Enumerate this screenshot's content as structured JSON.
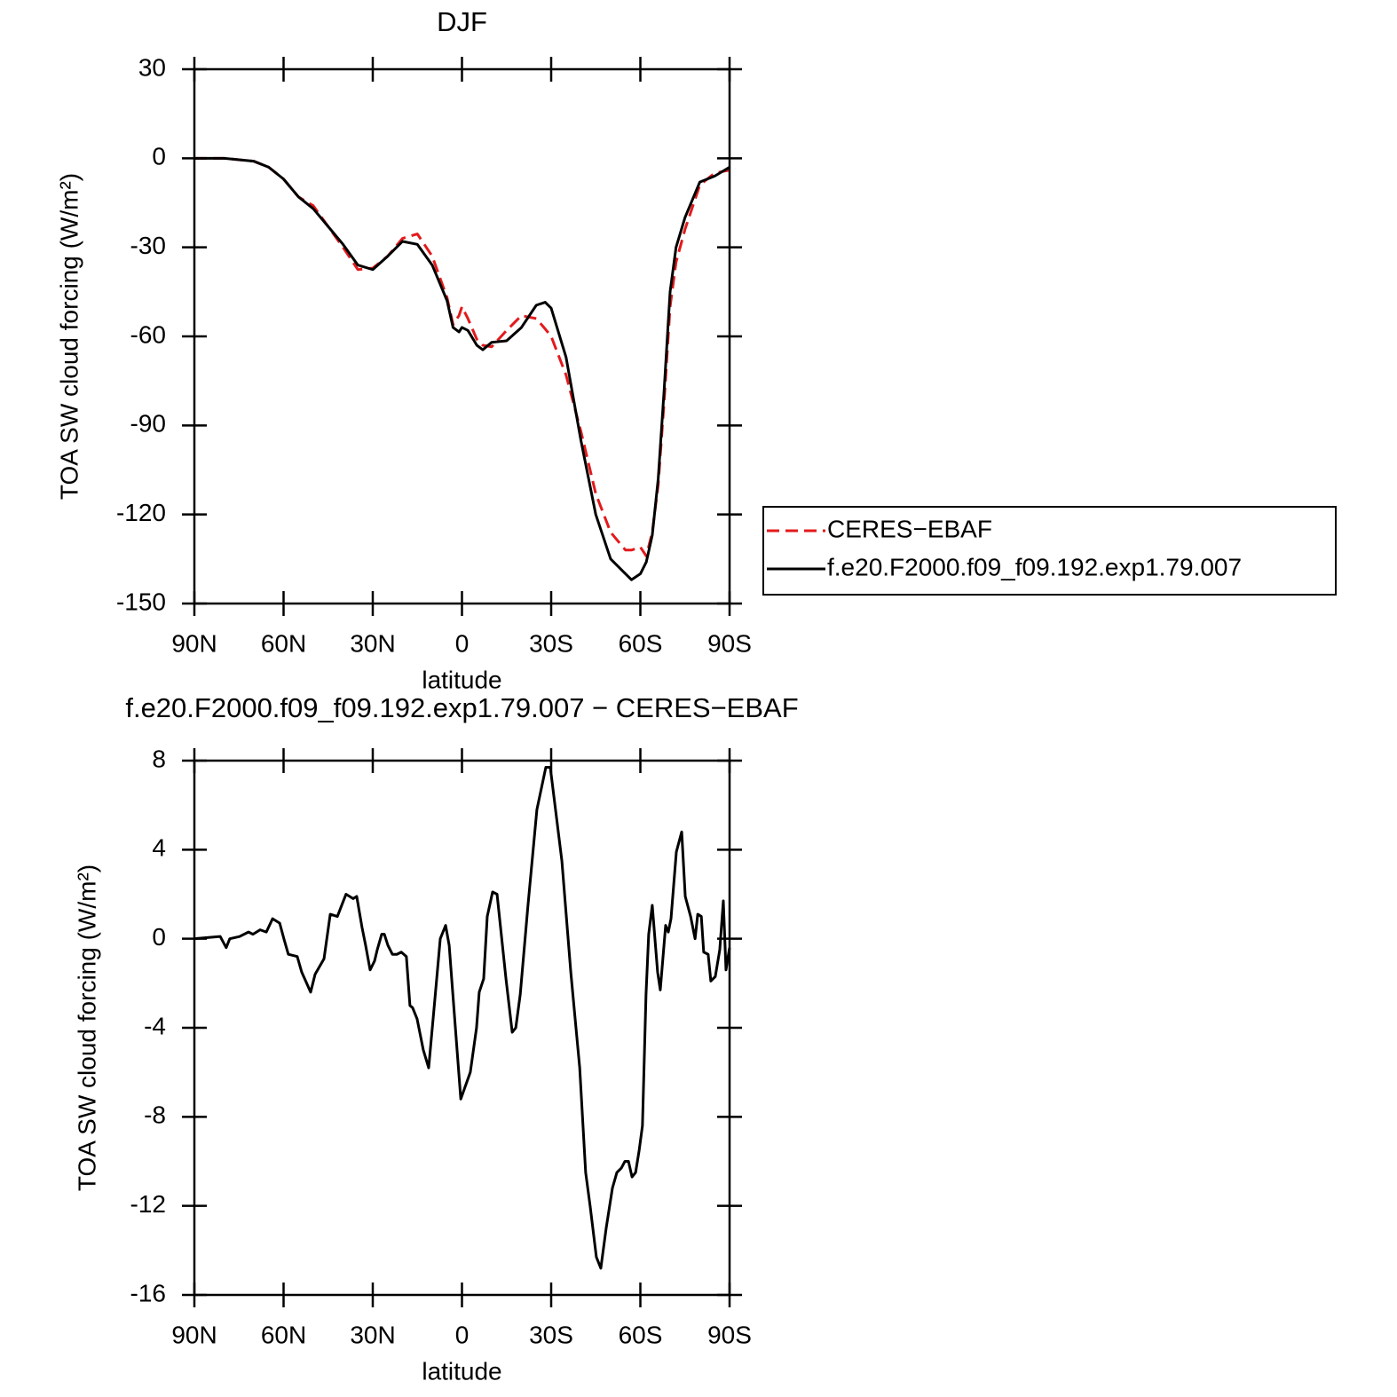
{
  "chart_data": [
    {
      "type": "line",
      "title": "DJF",
      "xlabel": "latitude",
      "ylabel": "TOA SW cloud forcing (W/m²)",
      "x": [
        90,
        80,
        70,
        65,
        60,
        55,
        50,
        45,
        40,
        35,
        30,
        25,
        20,
        15,
        10,
        5,
        3,
        1,
        0,
        -2,
        -5,
        -7,
        -10,
        -15,
        -20,
        -25,
        -28,
        -30,
        -35,
        -40,
        -45,
        -50,
        -55,
        -57,
        -60,
        -62,
        -64,
        -66,
        -68,
        -70,
        -72,
        -75,
        -80,
        -85,
        -90
      ],
      "series": [
        {
          "name": "CERES−EBAF",
          "color": "#e31a1c",
          "style": "dashed",
          "values": [
            0,
            0,
            -1,
            -3,
            -7,
            -13,
            -16,
            -23,
            -30,
            -37.5,
            -37,
            -33,
            -27,
            -25.5,
            -33,
            -47,
            -56,
            -53,
            -50,
            -54,
            -61,
            -63,
            -63.5,
            -58,
            -53,
            -54,
            -57.5,
            -60,
            -73,
            -92,
            -113,
            -126,
            -132,
            -132,
            -131,
            -134,
            -126,
            -110,
            -82,
            -50,
            -35,
            -24,
            -9,
            -5,
            -4
          ]
        },
        {
          "name": "f.e20.F2000.f09_f09.192.exp1.79.007",
          "color": "#000000",
          "style": "solid",
          "values": [
            0,
            0,
            -1,
            -3,
            -7,
            -13,
            -17,
            -23,
            -29,
            -36,
            -37.5,
            -33,
            -28,
            -29,
            -36,
            -48,
            -57,
            -58.5,
            -57,
            -58,
            -63,
            -64.5,
            -62,
            -61.5,
            -57,
            -49.5,
            -48.5,
            -50.5,
            -67,
            -95,
            -120,
            -135,
            -140,
            -142,
            -140,
            -136,
            -127,
            -108,
            -78,
            -45,
            -30,
            -20,
            -8,
            -6,
            -3
          ]
        }
      ],
      "xlim": [
        90,
        -90
      ],
      "xticks": [
        {
          "value": 90,
          "label": "90N"
        },
        {
          "value": 60,
          "label": "60N"
        },
        {
          "value": 30,
          "label": "30N"
        },
        0,
        {
          "value": -30,
          "label": "30S"
        },
        {
          "value": -60,
          "label": "60S"
        },
        {
          "value": -90,
          "label": "90S"
        }
      ],
      "ylim": [
        -150,
        30
      ],
      "yticks": [
        -150,
        -120,
        -90,
        -60,
        -30,
        0,
        30
      ],
      "legend": "right"
    },
    {
      "type": "line",
      "title": "f.e20.F2000.f09_f09.192.exp1.79.007 − CERES−EBAF",
      "xlabel": "latitude",
      "ylabel": "TOA SW cloud forcing (W/m²)",
      "x": [
        90,
        81.3,
        79.3,
        78.1,
        74.8,
        71.8,
        70.3,
        67.9,
        65.8,
        63.7,
        61.3,
        59.9,
        58.4,
        55.4,
        53.9,
        50.9,
        49.4,
        46.4,
        44.3,
        41.9,
        39,
        36.6,
        35.4,
        33.6,
        32.4,
        30.9,
        29.4,
        28.5,
        27,
        26.1,
        24.9,
        23.4,
        21.9,
        20.4,
        18.7,
        17.5,
        16.6,
        15.1,
        13,
        11.2,
        9.1,
        7.3,
        5.5,
        4.3,
        2.5,
        0.4,
        -2.8,
        -4.9,
        -5.8,
        -7.3,
        -8.5,
        -10.3,
        -11.8,
        -14.8,
        -16.9,
        -18.1,
        -19.6,
        -22.2,
        -25.2,
        -28.2,
        -29.7,
        -33.6,
        -36.6,
        -39.6,
        -41.6,
        -43.1,
        -45.2,
        -46.7,
        -48.5,
        -50.6,
        -52.1,
        -53.6,
        -54.8,
        -56,
        -57.2,
        -58.4,
        -59.6,
        -60.7,
        -61.9,
        -62.8,
        -64,
        -65.8,
        -66.7,
        -68.5,
        -69.4,
        -70.3,
        -72.1,
        -73.9,
        -75.1,
        -76.9,
        -78.4,
        -79.3,
        -80.5,
        -81.3,
        -82.8,
        -83.7,
        -85.2,
        -86.7,
        -87.9,
        -88.8,
        -90
      ],
      "series": [
        {
          "color": "#000000",
          "style": "solid",
          "values": [
            0,
            0.1,
            -0.4,
            0,
            0.1,
            0.3,
            0.2,
            0.4,
            0.3,
            0.9,
            0.7,
            0,
            -0.7,
            -0.8,
            -1.5,
            -2.4,
            -1.6,
            -0.9,
            1.1,
            1.0,
            2.0,
            1.8,
            1.9,
            0.5,
            -0.3,
            -1.4,
            -1.0,
            -0.5,
            0.2,
            0.2,
            -0.3,
            -0.7,
            -0.7,
            -0.6,
            -0.8,
            -3.0,
            -3.1,
            -3.6,
            -5.0,
            -5.8,
            -2.7,
            0,
            0.6,
            -0.3,
            -3.5,
            -7.2,
            -6,
            -4,
            -2.4,
            -1.8,
            1.0,
            2.1,
            2.0,
            -1.8,
            -4.2,
            -4.0,
            -2.5,
            1.5,
            5.8,
            7.7,
            7.7,
            3.5,
            -1.5,
            -5.8,
            -10.5,
            -12,
            -14.3,
            -14.8,
            -13.0,
            -11.2,
            -10.5,
            -10.3,
            -10,
            -10,
            -10.7,
            -10.5,
            -9.5,
            -8.4,
            -2.5,
            0.2,
            1.5,
            -1.5,
            -2.3,
            0.6,
            0.3,
            0.9,
            3.9,
            4.8,
            1.9,
            1.0,
            0,
            1.1,
            1.0,
            -0.6,
            -0.7,
            -1.9,
            -1.7,
            -0.5,
            1.7,
            -1.4,
            -0.4
          ]
        }
      ],
      "xlim": [
        90,
        -90
      ],
      "xticks": [
        {
          "value": 90,
          "label": "90N"
        },
        {
          "value": 60,
          "label": "60N"
        },
        {
          "value": 30,
          "label": "30N"
        },
        0,
        {
          "value": -30,
          "label": "30S"
        },
        {
          "value": -60,
          "label": "60S"
        },
        {
          "value": -90,
          "label": "90S"
        }
      ],
      "ylim": [
        -16,
        8
      ],
      "yticks": [
        -16,
        -12,
        -8,
        -4,
        0,
        4,
        8
      ]
    }
  ]
}
